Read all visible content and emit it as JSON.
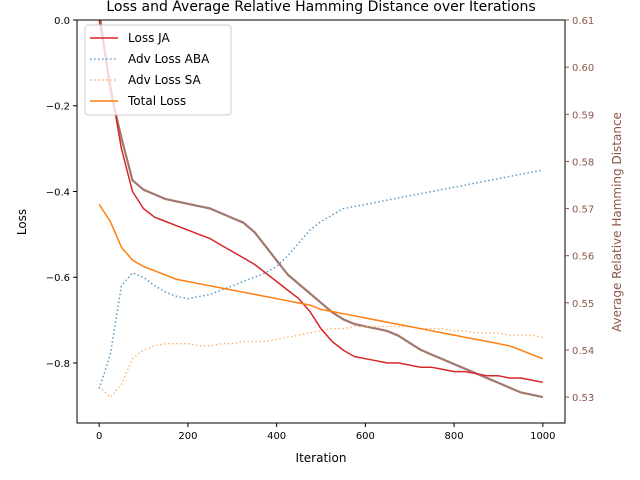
{
  "chart_data": {
    "type": "line",
    "title": "Loss and Average Relative Hamming Distance over Iterations",
    "xlabel": "Iteration",
    "ylabel": "Loss",
    "y2label": "Average Relative Hamming Distance",
    "xlim": [
      -50,
      1050
    ],
    "ylim": [
      -0.94,
      0.0
    ],
    "y2lim": [
      0.5245,
      0.61
    ],
    "xticks": [
      "0",
      "200",
      "400",
      "600",
      "800",
      "1000"
    ],
    "yticks": [
      "0.0",
      "−0.2",
      "−0.4",
      "−0.6",
      "−0.8"
    ],
    "y2ticks": [
      "0.53",
      "0.54",
      "0.55",
      "0.56",
      "0.57",
      "0.58",
      "0.59",
      "0.60",
      "0.61"
    ],
    "legend_position": "top-left",
    "grid": false,
    "colors": {
      "loss_ja": "#d62728",
      "adv_loss_aba": "#5b9ac6",
      "adv_loss_sa": "#ffad66",
      "total_loss": "#ff7f0e",
      "hamming": "#a1776e",
      "right_axis": "#8c564b"
    },
    "x": [
      0,
      25,
      50,
      75,
      100,
      125,
      150,
      175,
      200,
      225,
      250,
      275,
      300,
      325,
      350,
      375,
      400,
      425,
      450,
      475,
      500,
      525,
      550,
      575,
      600,
      625,
      650,
      675,
      700,
      725,
      750,
      775,
      800,
      825,
      850,
      875,
      900,
      925,
      950,
      975,
      1000
    ],
    "series": [
      {
        "name": "Loss JA",
        "axis": "left",
        "style": "solid",
        "values": [
          0.0,
          -0.15,
          -0.3,
          -0.4,
          -0.44,
          -0.46,
          -0.47,
          -0.48,
          -0.49,
          -0.5,
          -0.51,
          -0.525,
          -0.54,
          -0.555,
          -0.57,
          -0.59,
          -0.61,
          -0.63,
          -0.65,
          -0.68,
          -0.72,
          -0.75,
          -0.77,
          -0.785,
          -0.79,
          -0.795,
          -0.8,
          -0.8,
          -0.805,
          -0.81,
          -0.81,
          -0.815,
          -0.82,
          -0.82,
          -0.825,
          -0.83,
          -0.83,
          -0.835,
          -0.835,
          -0.84,
          -0.845
        ]
      },
      {
        "name": "Adv Loss ABA",
        "axis": "left",
        "style": "dotted",
        "values": [
          -0.86,
          -0.78,
          -0.62,
          -0.59,
          -0.6,
          -0.62,
          -0.635,
          -0.645,
          -0.65,
          -0.645,
          -0.64,
          -0.63,
          -0.62,
          -0.61,
          -0.6,
          -0.59,
          -0.575,
          -0.55,
          -0.52,
          -0.49,
          -0.47,
          -0.455,
          -0.44,
          -0.435,
          -0.43,
          -0.425,
          -0.42,
          -0.415,
          -0.41,
          -0.405,
          -0.4,
          -0.395,
          -0.39,
          -0.385,
          -0.38,
          -0.375,
          -0.37,
          -0.365,
          -0.36,
          -0.355,
          -0.35
        ]
      },
      {
        "name": "Adv Loss SA",
        "axis": "left",
        "style": "dotted",
        "values": [
          -0.855,
          -0.88,
          -0.85,
          -0.79,
          -0.77,
          -0.76,
          -0.755,
          -0.755,
          -0.755,
          -0.76,
          -0.76,
          -0.755,
          -0.755,
          -0.75,
          -0.75,
          -0.75,
          -0.745,
          -0.74,
          -0.735,
          -0.73,
          -0.725,
          -0.72,
          -0.72,
          -0.715,
          -0.715,
          -0.715,
          -0.715,
          -0.715,
          -0.715,
          -0.72,
          -0.72,
          -0.72,
          -0.725,
          -0.725,
          -0.73,
          -0.73,
          -0.73,
          -0.735,
          -0.735,
          -0.735,
          -0.74
        ]
      },
      {
        "name": "Total Loss",
        "axis": "left",
        "style": "solid",
        "values": [
          -0.43,
          -0.47,
          -0.53,
          -0.56,
          -0.575,
          -0.585,
          -0.595,
          -0.605,
          -0.61,
          -0.615,
          -0.62,
          -0.625,
          -0.63,
          -0.635,
          -0.64,
          -0.645,
          -0.65,
          -0.655,
          -0.66,
          -0.665,
          -0.675,
          -0.68,
          -0.685,
          -0.69,
          -0.695,
          -0.7,
          -0.705,
          -0.71,
          -0.715,
          -0.72,
          -0.725,
          -0.73,
          -0.735,
          -0.74,
          -0.745,
          -0.75,
          -0.755,
          -0.76,
          -0.77,
          -0.78,
          -0.79
        ]
      },
      {
        "axis": "right",
        "style": "solid",
        "values": [
          0.612,
          0.595,
          0.585,
          0.576,
          0.574,
          0.573,
          0.572,
          0.5715,
          0.571,
          0.5705,
          0.57,
          0.569,
          0.568,
          0.567,
          0.565,
          0.562,
          0.559,
          0.556,
          0.554,
          0.552,
          0.55,
          0.548,
          0.5465,
          0.5455,
          0.545,
          0.5445,
          0.544,
          0.543,
          0.5415,
          0.54,
          0.539,
          0.538,
          0.537,
          0.536,
          0.535,
          0.534,
          0.533,
          0.532,
          0.531,
          0.5305,
          0.53
        ]
      }
    ]
  }
}
